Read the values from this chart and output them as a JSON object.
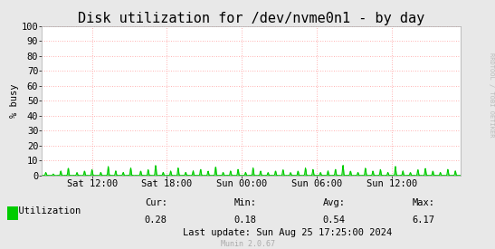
{
  "title": "Disk utilization for /dev/nvme0n1 - by day",
  "ylabel": "% busy",
  "background_color": "#e8e8e8",
  "plot_bg_color": "#ffffff",
  "grid_color": "#ff9999",
  "line_color": "#00cc00",
  "ylim": [
    0,
    100
  ],
  "xtick_labels": [
    "Sat 12:00",
    "Sat 18:00",
    "Sun 00:00",
    "Sun 06:00",
    "Sun 12:00"
  ],
  "legend_label": "Utilization",
  "legend_color": "#00cc00",
  "cur_val": "0.28",
  "min_val": "0.18",
  "avg_val": "0.54",
  "max_val": "6.17",
  "last_update": "Last update: Sun Aug 25 17:25:00 2024",
  "munin_version": "Munin 2.0.67",
  "rrdtool_label": "RRDTOOL / TOBI OETIKER",
  "title_fontsize": 11,
  "label_fontsize": 7.5,
  "tick_fontsize": 7.5,
  "stats_fontsize": 7.5
}
